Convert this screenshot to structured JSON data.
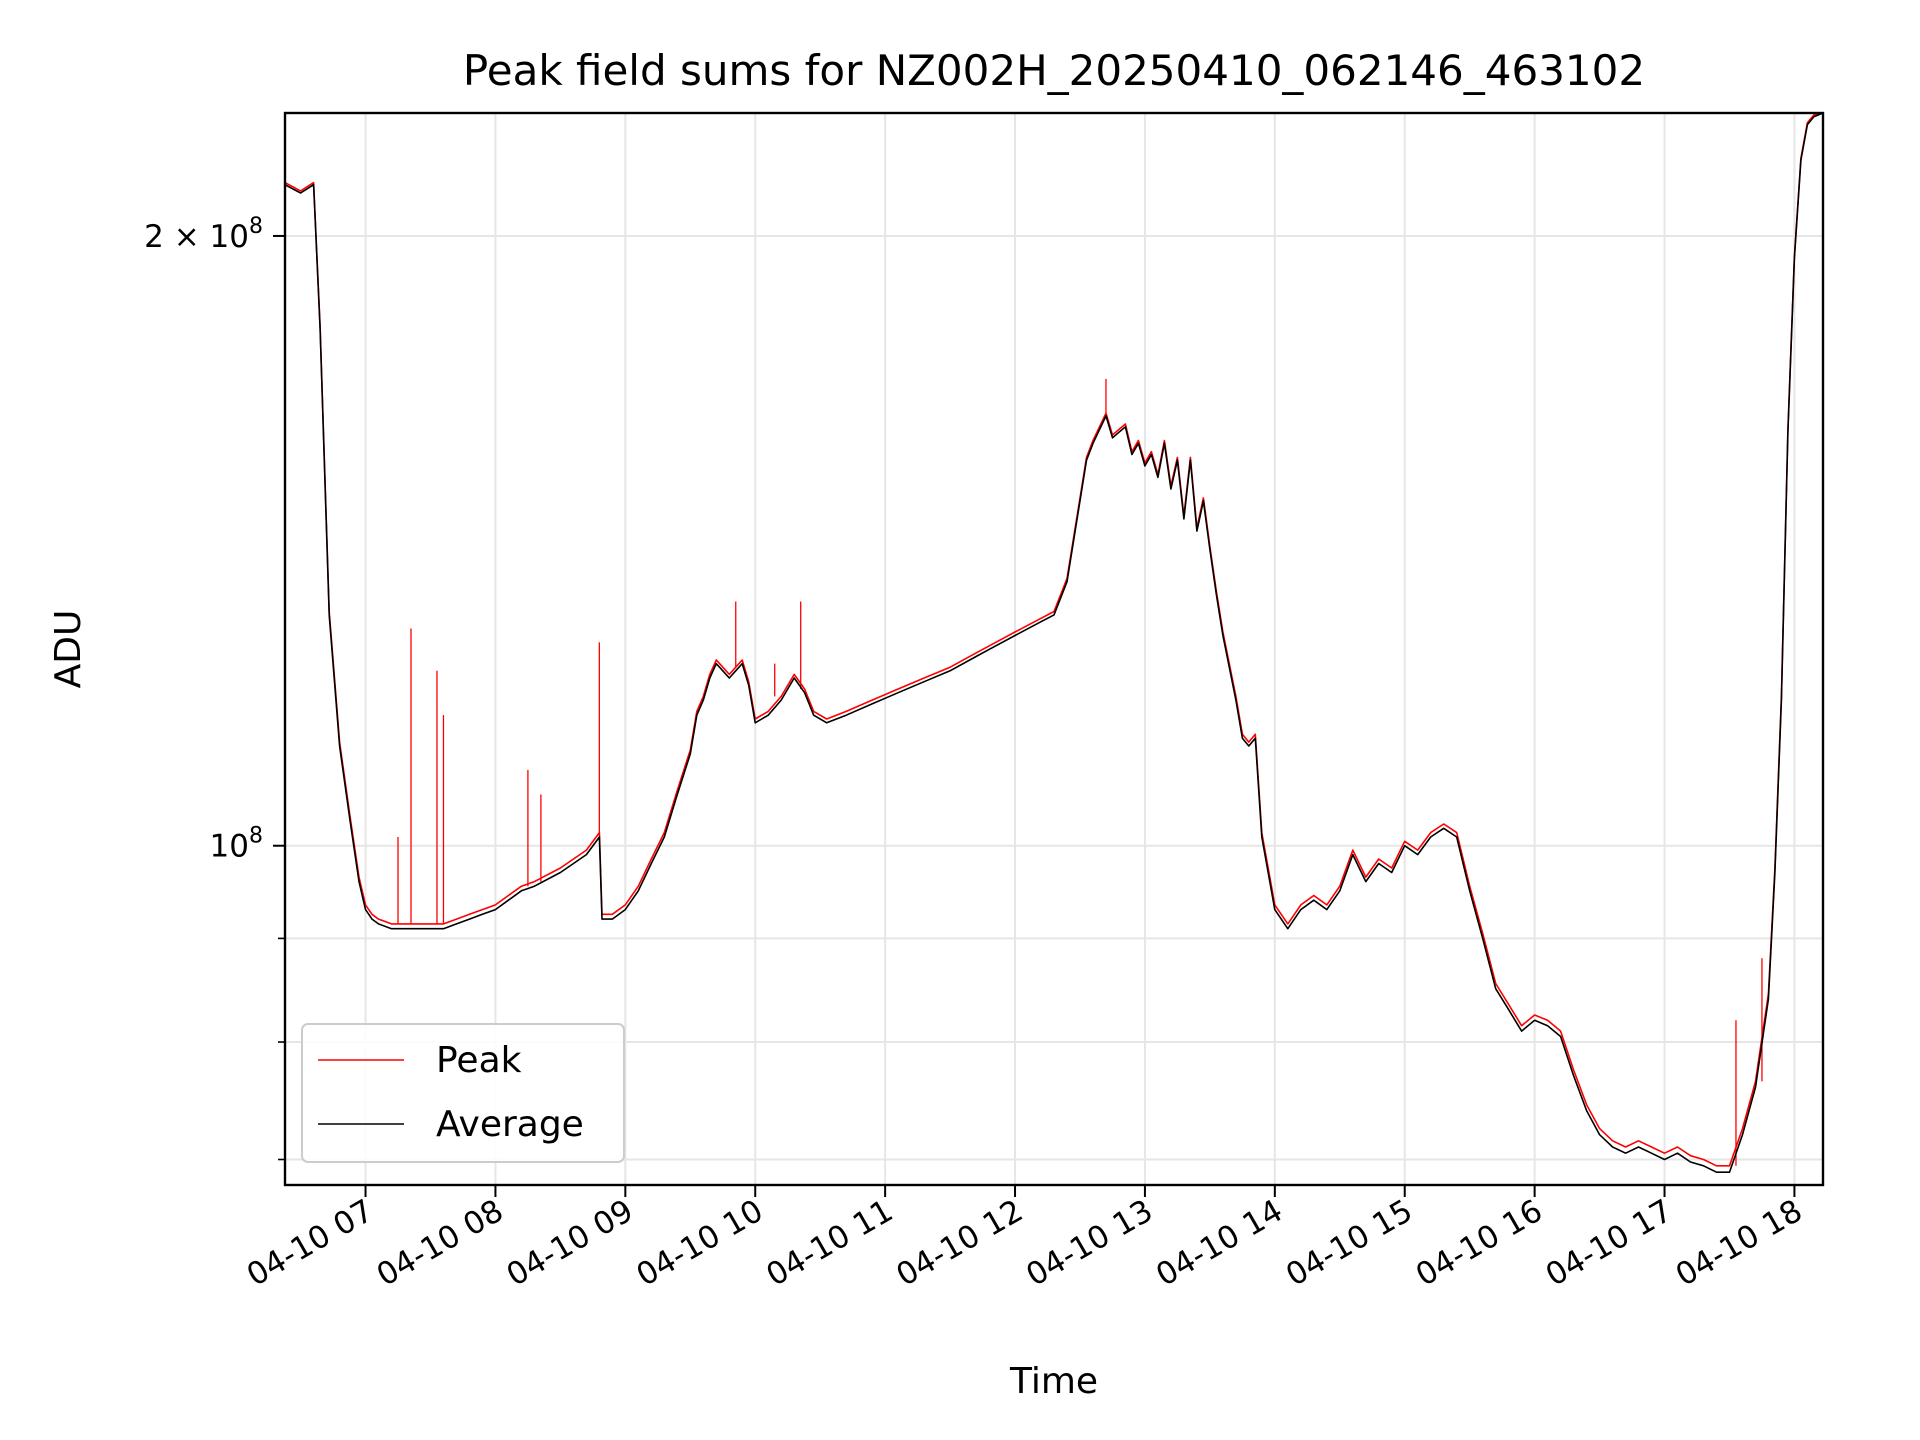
{
  "chart_data": {
    "type": "line",
    "title": "Peak field sums for NZ002H_20250410_062146_463102",
    "xlabel": "Time",
    "ylabel": "ADU",
    "yscale": "log",
    "ylim": [
      68000000,
      230000000
    ],
    "xlim": [
      6.38,
      18.22
    ],
    "grid": true,
    "legend_position": "lower-left",
    "x_ticks": [
      {
        "value": 7,
        "label": "04-10 07"
      },
      {
        "value": 8,
        "label": "04-10 08"
      },
      {
        "value": 9,
        "label": "04-10 09"
      },
      {
        "value": 10,
        "label": "04-10 10"
      },
      {
        "value": 11,
        "label": "04-10 11"
      },
      {
        "value": 12,
        "label": "04-10 12"
      },
      {
        "value": 13,
        "label": "04-10 13"
      },
      {
        "value": 14,
        "label": "04-10 14"
      },
      {
        "value": 15,
        "label": "04-10 15"
      },
      {
        "value": 16,
        "label": "04-10 16"
      },
      {
        "value": 17,
        "label": "04-10 17"
      },
      {
        "value": 18,
        "label": "04-10 18"
      }
    ],
    "y_ticks_major": [
      {
        "value": 100000000,
        "base": "10",
        "exp": "8",
        "coef": ""
      },
      {
        "value": 200000000,
        "base": "10",
        "exp": "8",
        "coef": "2 × "
      }
    ],
    "y_ticks_minor": [
      70000000,
      80000000,
      90000000
    ],
    "x_unit_note": "hours of 2025-04-10",
    "series": [
      {
        "name": "Average",
        "color": "#000000",
        "x": [
          6.38,
          6.5,
          6.6,
          6.65,
          6.72,
          6.8,
          6.88,
          6.95,
          7.0,
          7.05,
          7.1,
          7.2,
          7.4,
          7.6,
          7.7,
          7.8,
          7.9,
          8.0,
          8.1,
          8.2,
          8.3,
          8.5,
          8.7,
          8.8,
          8.82,
          8.9,
          9.0,
          9.1,
          9.2,
          9.3,
          9.4,
          9.5,
          9.55,
          9.6,
          9.65,
          9.7,
          9.75,
          9.8,
          9.85,
          9.9,
          9.95,
          10.0,
          10.1,
          10.2,
          10.3,
          10.38,
          10.45,
          10.55,
          10.7,
          10.9,
          11.1,
          11.3,
          11.5,
          11.7,
          11.8,
          12.0,
          12.2,
          12.3,
          12.4,
          12.5,
          12.55,
          12.6,
          12.7,
          12.75,
          12.8,
          12.85,
          12.9,
          12.95,
          13.0,
          13.05,
          13.1,
          13.15,
          13.2,
          13.25,
          13.3,
          13.35,
          13.4,
          13.45,
          13.5,
          13.55,
          13.6,
          13.7,
          13.75,
          13.8,
          13.85,
          13.9,
          14.0,
          14.1,
          14.2,
          14.3,
          14.4,
          14.5,
          14.6,
          14.7,
          14.8,
          14.9,
          15.0,
          15.1,
          15.2,
          15.3,
          15.4,
          15.5,
          15.6,
          15.7,
          15.8,
          15.9,
          16.0,
          16.1,
          16.2,
          16.3,
          16.4,
          16.5,
          16.6,
          16.7,
          16.8,
          16.9,
          17.0,
          17.1,
          17.2,
          17.3,
          17.4,
          17.5,
          17.6,
          17.7,
          17.8,
          17.85,
          17.9,
          17.95,
          18.0,
          18.05,
          18.1,
          18.15,
          18.22
        ],
        "y": [
          212000000,
          210000000,
          212000000,
          180000000,
          130000000,
          112000000,
          103000000,
          96000000,
          93000000,
          92000000,
          91500000,
          91000000,
          91000000,
          91000000,
          91500000,
          92000000,
          92500000,
          93000000,
          94000000,
          95000000,
          95500000,
          97000000,
          99000000,
          101000000,
          92000000,
          92000000,
          93000000,
          95000000,
          98000000,
          101000000,
          106000000,
          111000000,
          116000000,
          118000000,
          121000000,
          123000000,
          122000000,
          121000000,
          122000000,
          123000000,
          120000000,
          115000000,
          116000000,
          118000000,
          121000000,
          119000000,
          116000000,
          115000000,
          116000000,
          117500000,
          119000000,
          120500000,
          122000000,
          124000000,
          125000000,
          127000000,
          129000000,
          130000000,
          135000000,
          148000000,
          155000000,
          158000000,
          163000000,
          159000000,
          160000000,
          161000000,
          156000000,
          158000000,
          154000000,
          156000000,
          152000000,
          158000000,
          150000000,
          155000000,
          145000000,
          155000000,
          143000000,
          148000000,
          140000000,
          133000000,
          127000000,
          118000000,
          113000000,
          112000000,
          113000000,
          101000000,
          93000000,
          91000000,
          93000000,
          94000000,
          93000000,
          95000000,
          99000000,
          96000000,
          98000000,
          97000000,
          100000000,
          99000000,
          101000000,
          102000000,
          101000000,
          95000000,
          90000000,
          85000000,
          83000000,
          81000000,
          82000000,
          81500000,
          80500000,
          77000000,
          74000000,
          72000000,
          71000000,
          70500000,
          71000000,
          70500000,
          70000000,
          70500000,
          69800000,
          69500000,
          69000000,
          69000000,
          72000000,
          76000000,
          84000000,
          97000000,
          118000000,
          160000000,
          195000000,
          218000000,
          227000000,
          229000000,
          230000000
        ]
      },
      {
        "name": "Peak",
        "color": "#ff0000",
        "x": [
          6.38,
          6.5,
          6.6,
          6.65,
          6.72,
          6.8,
          6.88,
          6.95,
          7.0,
          7.05,
          7.1,
          7.2,
          7.4,
          7.6,
          7.7,
          7.8,
          7.9,
          8.0,
          8.1,
          8.2,
          8.3,
          8.5,
          8.7,
          8.8,
          8.82,
          8.9,
          9.0,
          9.1,
          9.2,
          9.3,
          9.4,
          9.5,
          9.55,
          9.6,
          9.65,
          9.7,
          9.75,
          9.8,
          9.85,
          9.9,
          9.95,
          10.0,
          10.1,
          10.2,
          10.3,
          10.38,
          10.45,
          10.55,
          10.7,
          10.9,
          11.1,
          11.3,
          11.5,
          11.7,
          11.8,
          12.0,
          12.2,
          12.3,
          12.4,
          12.5,
          12.55,
          12.6,
          12.7,
          12.75,
          12.8,
          12.85,
          12.9,
          12.95,
          13.0,
          13.05,
          13.1,
          13.15,
          13.2,
          13.25,
          13.3,
          13.35,
          13.4,
          13.45,
          13.5,
          13.55,
          13.6,
          13.7,
          13.75,
          13.8,
          13.85,
          13.9,
          14.0,
          14.1,
          14.2,
          14.3,
          14.4,
          14.5,
          14.6,
          14.7,
          14.8,
          14.9,
          15.0,
          15.1,
          15.2,
          15.3,
          15.4,
          15.5,
          15.6,
          15.7,
          15.8,
          15.9,
          16.0,
          16.1,
          16.2,
          16.3,
          16.4,
          16.5,
          16.6,
          16.7,
          16.8,
          16.9,
          17.0,
          17.1,
          17.2,
          17.3,
          17.4,
          17.5,
          17.6,
          17.7,
          17.8,
          17.85,
          17.9,
          17.95,
          18.0,
          18.05,
          18.1,
          18.15,
          18.22
        ],
        "y": [
          212500000,
          210500000,
          212500000,
          180500000,
          130500000,
          112500000,
          103500000,
          96500000,
          93500000,
          92500000,
          92000000,
          91500000,
          91500000,
          91500000,
          92000000,
          92500000,
          93000000,
          93500000,
          94500000,
          95500000,
          96000000,
          97500000,
          99500000,
          101500000,
          92500000,
          92500000,
          93500000,
          95500000,
          98500000,
          101500000,
          106500000,
          111500000,
          116500000,
          118500000,
          121500000,
          123500000,
          122500000,
          121500000,
          122500000,
          123500000,
          120500000,
          115500000,
          116500000,
          118500000,
          121500000,
          119500000,
          116500000,
          115500000,
          116500000,
          118000000,
          119500000,
          121000000,
          122500000,
          124500000,
          125500000,
          127500000,
          129500000,
          130500000,
          135500000,
          148500000,
          155500000,
          158500000,
          163500000,
          159500000,
          160500000,
          161500000,
          156500000,
          158500000,
          154500000,
          156500000,
          152500000,
          158500000,
          150500000,
          155500000,
          145500000,
          155500000,
          143500000,
          148500000,
          140500000,
          133500000,
          127500000,
          118500000,
          113500000,
          112500000,
          113500000,
          101500000,
          93500000,
          91500000,
          93500000,
          94500000,
          93500000,
          95500000,
          99500000,
          96500000,
          98500000,
          97500000,
          100500000,
          99500000,
          101500000,
          102500000,
          101500000,
          95500000,
          90500000,
          85500000,
          83500000,
          81500000,
          82500000,
          82000000,
          81000000,
          77500000,
          74500000,
          72500000,
          71500000,
          71000000,
          71500000,
          71000000,
          70500000,
          71000000,
          70300000,
          70000000,
          69500000,
          69500000,
          72500000,
          76500000,
          84500000,
          97500000,
          118500000,
          160500000,
          195500000,
          218500000,
          227500000,
          229500000,
          230000000
        ],
        "spikes": [
          {
            "x": 7.35,
            "y": 128000000
          },
          {
            "x": 7.55,
            "y": 122000000
          },
          {
            "x": 7.6,
            "y": 116000000
          },
          {
            "x": 7.25,
            "y": 101000000
          },
          {
            "x": 8.25,
            "y": 109000000
          },
          {
            "x": 8.35,
            "y": 106000000
          },
          {
            "x": 8.8,
            "y": 126000000
          },
          {
            "x": 9.85,
            "y": 132000000
          },
          {
            "x": 10.35,
            "y": 132000000
          },
          {
            "x": 10.15,
            "y": 123000000
          },
          {
            "x": 12.7,
            "y": 170000000
          },
          {
            "x": 17.55,
            "y": 82000000
          },
          {
            "x": 17.75,
            "y": 88000000
          }
        ]
      }
    ]
  }
}
